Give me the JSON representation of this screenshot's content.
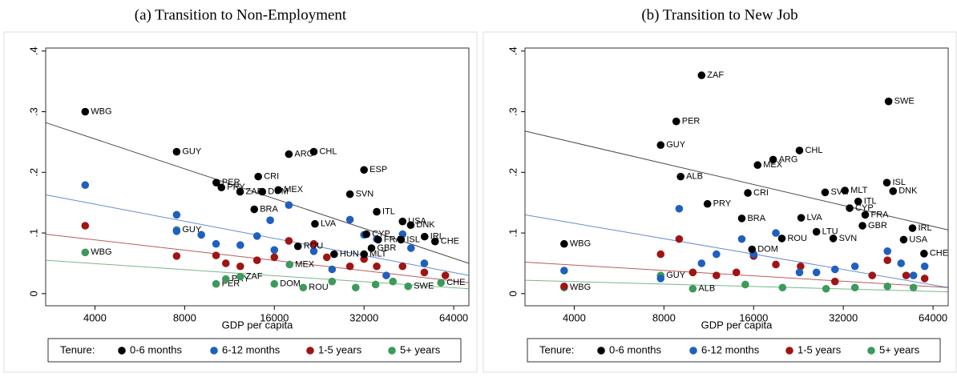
{
  "chart_data": [
    {
      "type": "scatter",
      "title": "(a) Transition to Non-Employment",
      "x_label": "GDP per capita",
      "xscale": "log",
      "xlim": [
        2734,
        71950
      ],
      "xticks": [
        4000,
        8000,
        16000,
        32000,
        64000
      ],
      "ylim": [
        -0.02,
        0.405
      ],
      "yticks": [
        0,
        {
          "value": 0.1,
          "label": ".1"
        },
        {
          "value": 0.2,
          "label": ".2"
        },
        {
          "value": 0.3,
          "label": ".3"
        },
        {
          "value": 0.4,
          "label": ".4"
        }
      ],
      "legend_title": "Tenure:",
      "trend_x": [
        2734,
        71950
      ],
      "series": [
        {
          "name": "0-6 months",
          "color": "#000000",
          "x": [
            3710,
            7520,
            10220,
            10630,
            12280,
            14130,
            14580,
            16500,
            13700,
            17900,
            21700,
            21900,
            19200,
            28700,
            32000,
            35300,
            32600,
            35700,
            43100,
            45900,
            42600,
            51100,
            55400,
            32000,
            25400,
            33900
          ],
          "values": [
            0.3,
            0.234,
            0.183,
            0.175,
            0.168,
            0.193,
            0.168,
            0.171,
            0.139,
            0.23,
            0.234,
            0.115,
            0.078,
            0.164,
            0.204,
            0.135,
            0.098,
            0.089,
            0.119,
            0.113,
            0.089,
            0.094,
            0.086,
            0.065,
            0.065,
            0.075
          ],
          "labels": [
            "WBG",
            "GUY",
            "PER",
            "PRY",
            "ZAF",
            "CRI",
            "DOM",
            "MEX",
            "BRA",
            "ARG",
            "CHL",
            "LVA",
            "ROU",
            "SVN",
            "ESP",
            "ITL",
            "CYP",
            "FRA",
            "USA",
            "DNK",
            "ISL",
            "IRL",
            "CHE",
            "MLT",
            "HUN",
            "GBR"
          ],
          "trend": [
            0.282,
            0.05
          ]
        },
        {
          "name": "6-12 months",
          "color": "#1f5fbf",
          "x": [
            3710,
            7520,
            7520,
            9100,
            10200,
            12300,
            14000,
            16000,
            17900,
            15500,
            21700,
            28700,
            32000,
            35300,
            43100,
            46000,
            51000,
            25000,
            38000
          ],
          "values": [
            0.179,
            0.13,
            0.103,
            0.097,
            0.082,
            0.08,
            0.095,
            0.072,
            0.146,
            0.121,
            0.07,
            0.122,
            0.097,
            0.09,
            0.098,
            0.075,
            0.05,
            0.04,
            0.03
          ],
          "trend": [
            0.163,
            0.03
          ]
        },
        {
          "name": "1-5 years",
          "color": "#a01414",
          "x": [
            3710,
            7520,
            10200,
            11000,
            12300,
            14000,
            16000,
            17900,
            21700,
            24000,
            28700,
            32000,
            35300,
            43100,
            51000,
            60000
          ],
          "values": [
            0.112,
            0.062,
            0.063,
            0.05,
            0.045,
            0.055,
            0.06,
            0.087,
            0.082,
            0.06,
            0.045,
            0.057,
            0.045,
            0.045,
            0.035,
            0.03
          ],
          "trend": [
            0.098,
            0.018
          ]
        },
        {
          "name": "5+ years",
          "color": "#3c9a5a",
          "x": [
            3710,
            7520,
            10200,
            11000,
            12300,
            16000,
            18000,
            20000,
            58000,
            45000,
            25000,
            30000,
            35000,
            40000
          ],
          "values": [
            0.068,
            0.105,
            0.016,
            0.024,
            0.028,
            0.016,
            0.048,
            0.01,
            0.018,
            0.012,
            0.02,
            0.01,
            0.015,
            0.02
          ],
          "labels": [
            "WBG",
            "GUY",
            "PER",
            "PRY",
            "ZAF",
            "DOM",
            "MEX",
            "ROU",
            "CHE",
            "SWE",
            null,
            null,
            null,
            null
          ],
          "trend": [
            0.055,
            0.008
          ]
        }
      ]
    },
    {
      "type": "scatter",
      "title": "(b) Transition to New Job",
      "x_label": "GDP per capita",
      "xscale": "log",
      "xlim": [
        2734,
        71950
      ],
      "xticks": [
        4000,
        8000,
        16000,
        32000,
        64000
      ],
      "ylim": [
        -0.02,
        0.405
      ],
      "yticks": [
        0,
        {
          "value": 0.1,
          "label": ".1"
        },
        {
          "value": 0.2,
          "label": ".2"
        },
        {
          "value": 0.3,
          "label": ".3"
        },
        {
          "value": 0.4,
          "label": ".4"
        }
      ],
      "legend_title": "Tenure:",
      "trend_x": [
        2734,
        71950
      ],
      "series": [
        {
          "name": "0-6 months",
          "color": "#000000",
          "x": [
            3700,
            7800,
            8800,
            10700,
            9100,
            11200,
            15300,
            14600,
            16500,
            18600,
            22800,
            23100,
            26000,
            19900,
            15800,
            29600,
            27800,
            32400,
            35900,
            33600,
            37900,
            37100,
            44800,
            47000,
            51000,
            54600,
            59700,
            45400
          ],
          "values": [
            0.082,
            0.245,
            0.284,
            0.36,
            0.193,
            0.148,
            0.166,
            0.124,
            0.212,
            0.221,
            0.236,
            0.125,
            0.102,
            0.091,
            0.073,
            0.091,
            0.167,
            0.17,
            0.152,
            0.141,
            0.13,
            0.112,
            0.183,
            0.169,
            0.089,
            0.108,
            0.066,
            0.317
          ],
          "labels": [
            "WBG",
            "GUY",
            "PER",
            "ZAF",
            "ALB",
            "PRY",
            "CRI",
            "BRA",
            "MEX",
            "ARG",
            "CHL",
            "LVA",
            "LTU",
            "ROU",
            "DOM",
            "SVN",
            "SVK",
            "MLT",
            "ITL",
            "CYP",
            "FRA",
            "GBR",
            "ISL",
            "DNK",
            "USA",
            "IRL",
            "CHE",
            "SWE"
          ],
          "trend": [
            0.268,
            0.105
          ]
        },
        {
          "name": "6-12 months",
          "color": "#1f5fbf",
          "x": [
            3700,
            7800,
            9000,
            10700,
            12000,
            14600,
            16000,
            19000,
            22800,
            26000,
            30000,
            35000,
            45000,
            50000,
            55000,
            60000
          ],
          "values": [
            0.038,
            0.025,
            0.14,
            0.05,
            0.065,
            0.09,
            0.065,
            0.1,
            0.035,
            0.035,
            0.04,
            0.045,
            0.07,
            0.05,
            0.03,
            0.045
          ],
          "trend": [
            0.13,
            0.01
          ]
        },
        {
          "name": "1-5 years",
          "color": "#a01414",
          "x": [
            3700,
            7800,
            9000,
            10000,
            12000,
            14000,
            16000,
            19000,
            23000,
            30000,
            40000,
            45000,
            52000,
            60000
          ],
          "values": [
            0.012,
            0.065,
            0.09,
            0.035,
            0.03,
            0.035,
            0.062,
            0.048,
            0.045,
            0.02,
            0.03,
            0.055,
            0.03,
            0.025
          ],
          "trend": [
            0.052,
            0.01
          ]
        },
        {
          "name": "5+ years",
          "color": "#3c9a5a",
          "x": [
            3700,
            7800,
            10000,
            15000,
            20000,
            28000,
            35000,
            45000,
            55000
          ],
          "values": [
            0.01,
            0.03,
            0.008,
            0.015,
            0.01,
            0.008,
            0.01,
            0.012,
            0.01
          ],
          "labels": [
            "WBG",
            "GUY",
            "ALB",
            null,
            null,
            null,
            null,
            null,
            null
          ],
          "trend": [
            0.022,
            0.003
          ]
        }
      ]
    }
  ]
}
